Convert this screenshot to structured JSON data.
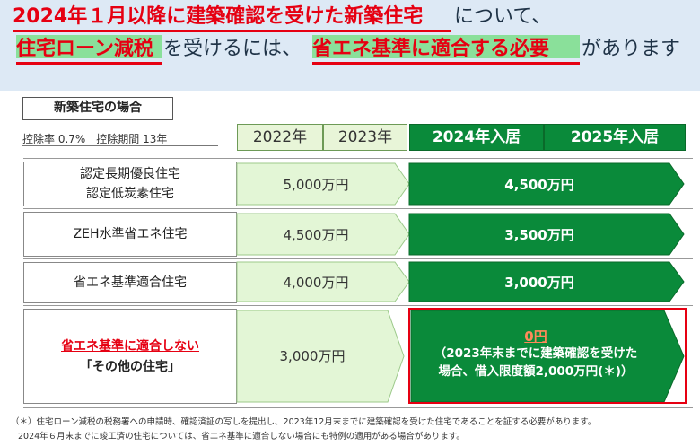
{
  "headline": {
    "line1_red": "2024年１月以降に建築確認を受けた新築住宅",
    "line1_plain": "について、",
    "line2_red1": "住宅ローン減税",
    "line2_plain1": "を受けるには、",
    "line2_red2": "省エネ基準に適合する必要",
    "line2_plain2": "があります"
  },
  "case_label": "新築住宅の場合",
  "deduction_note": "控除率 0.7%　控除期間 13年",
  "years": [
    "2022年",
    "2023年",
    "2024年入居",
    "2025年入居"
  ],
  "rows": [
    {
      "label_line1": "認定長期優良住宅",
      "label_line2": "認定低炭素住宅",
      "old_value": "5,000万円",
      "new_value": "4,500万円"
    },
    {
      "label": "ZEH水準省エネ住宅",
      "old_value": "4,500万円",
      "new_value": "3,500万円"
    },
    {
      "label": "省エネ基準適合住宅",
      "old_value": "4,000万円",
      "new_value": "3,000万円"
    },
    {
      "label_red": "省エネ基準に適合しない",
      "label_black": "「その他の住宅」",
      "old_value": "3,000万円",
      "new_value": "0円",
      "new_note_line1": "（2023年末までに建築確認を受けた",
      "new_note_line2": "場合、借入限度額2,000万円(＊)）"
    }
  ],
  "footnote_line1": "（＊）住宅ローン減税の税務署への申請時、確認済証の写しを提出し、2023年12月末までに建築確認を受けた住宅であることを証する必要があります。",
  "footnote_line2": "2024年６月末までに竣工済の住宅については、省エネ基準に適合しない場合にも特例の適用がある場合があります。",
  "colors": {
    "red": "#e60012",
    "dark_green": "#0a8a3a",
    "light_green": "#e3f6d6",
    "banner": "#dde9f5",
    "highlight": "#8ae09a"
  }
}
